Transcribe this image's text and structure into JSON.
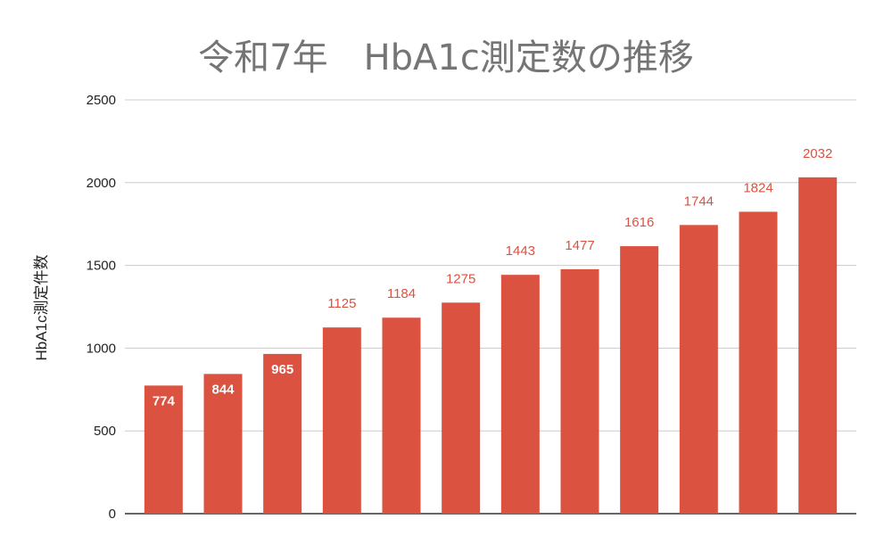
{
  "chart_data": {
    "type": "bar",
    "title": "令和7年　HbA1c測定数の推移",
    "xlabel": "",
    "ylabel": "HbA1c測定件数",
    "categories": [
      "",
      "",
      "",
      "",
      "",
      "",
      "",
      "",
      "",
      "",
      "",
      ""
    ],
    "values": [
      774,
      844,
      965,
      1125,
      1184,
      1275,
      1443,
      1477,
      1616,
      1744,
      1824,
      2032
    ],
    "data_labels": [
      "774",
      "844",
      "965",
      "1125",
      "1184",
      "1275",
      "1443",
      "1477",
      "1616",
      "1744",
      "1824",
      "2032"
    ],
    "ylim": [
      0,
      2500
    ],
    "yticks": [
      "0",
      "500",
      "1000",
      "1500",
      "2000",
      "2500"
    ],
    "grid": true,
    "legend": "none",
    "colors": {
      "bar": "#db5241",
      "label_outside": "#db5241",
      "label_inside": "#ffffff",
      "title": "#757575",
      "grid": "#cccccc",
      "axis": "#333333"
    }
  }
}
